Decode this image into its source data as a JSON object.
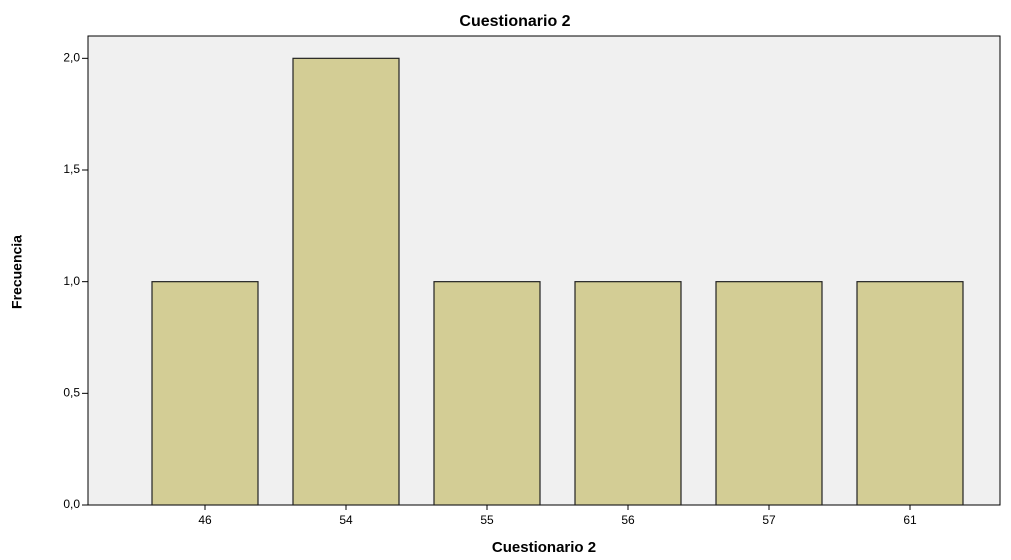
{
  "chart_data": {
    "type": "bar",
    "title": "Cuestionario 2",
    "x_label": "Cuestionario 2",
    "y_label": "Frecuencia",
    "categories": [
      "46",
      "54",
      "55",
      "56",
      "57",
      "61"
    ],
    "values": [
      1,
      2,
      1,
      1,
      1,
      1
    ],
    "color": "#d3cd95",
    "ylim": [
      0,
      2.1
    ],
    "yticks": [
      {
        "value": 0,
        "label": "0,0"
      },
      {
        "value": 0.5,
        "label": "0,5"
      },
      {
        "value": 1,
        "label": "1,0"
      },
      {
        "value": 1.5,
        "label": "1,5"
      },
      {
        "value": 2,
        "label": "2,0"
      }
    ],
    "grid": false
  }
}
